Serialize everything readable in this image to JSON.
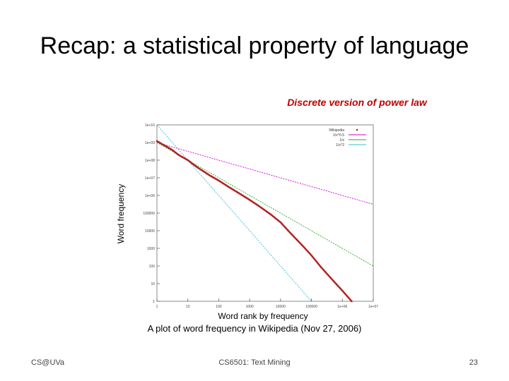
{
  "slide": {
    "title": "Recap: a statistical property of language",
    "subtitle": "Discrete version of power law",
    "caption": "A plot of word frequency in Wikipedia (Nov 27, 2006)"
  },
  "footer": {
    "left": "CS@UVa",
    "center": "CS6501: Text Mining",
    "page": "23"
  },
  "chart_data": {
    "type": "line",
    "xscale": "log",
    "yscale": "log",
    "xlabel": "Word rank by frequency",
    "ylabel": "Word frequency",
    "xlim": [
      1,
      10000000
    ],
    "ylim": [
      1,
      10000000000
    ],
    "x_ticks": [
      "1",
      "10",
      "100",
      "1000",
      "10000",
      "100000",
      "1e+06",
      "1e+07"
    ],
    "y_ticks": [
      "1",
      "10",
      "100",
      "1000",
      "10000",
      "100000",
      "1e+06",
      "1e+07",
      "1e+08",
      "1e+09",
      "1e+10"
    ],
    "legend_position": "top-right",
    "series": [
      {
        "name": "Wikipedia",
        "style": "points",
        "color": "#b22222",
        "x": [
          1,
          2,
          3,
          5,
          10,
          20,
          50,
          100,
          200,
          500,
          1000,
          2000,
          5000,
          10000,
          20000,
          50000,
          100000,
          200000,
          500000,
          1000000,
          2000000
        ],
        "y": [
          1200000000,
          600000000,
          400000000,
          200000000,
          100000000,
          40000000,
          14000000,
          7000000,
          3200000,
          1200000,
          560000,
          250000,
          80000,
          30000,
          8000,
          1500,
          400,
          90,
          15,
          4,
          1
        ]
      },
      {
        "name": "1/x^0.5",
        "style": "line",
        "color": "#cc00cc",
        "x": [
          1,
          10000000
        ],
        "y": [
          1000000000,
          316228
        ]
      },
      {
        "name": "1/x",
        "style": "line",
        "color": "#22aa22",
        "x": [
          1,
          10000000
        ],
        "y": [
          1000000000,
          100
        ]
      },
      {
        "name": "1/x^2",
        "style": "line",
        "color": "#33bbdd",
        "x": [
          1,
          100000
        ],
        "y": [
          10000000000,
          1
        ]
      }
    ]
  }
}
